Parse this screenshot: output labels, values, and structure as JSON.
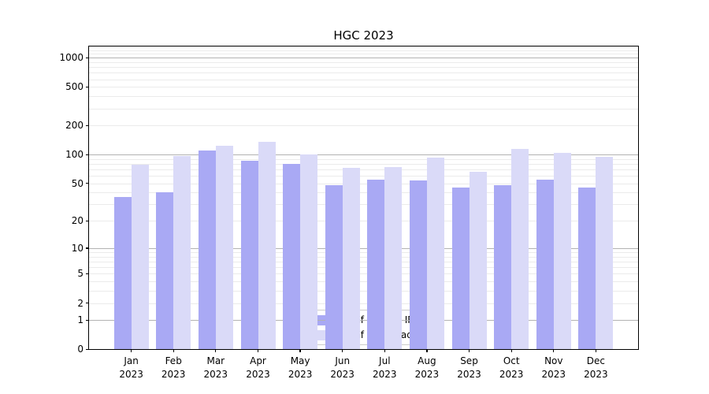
{
  "title": "HGC 2023",
  "chart_data": {
    "type": "bar",
    "title": "HGC 2023",
    "x_axis": {
      "categories": [
        "Jan",
        "Feb",
        "Mar",
        "Apr",
        "May",
        "Jun",
        "Jul",
        "Aug",
        "Sep",
        "Oct",
        "Nov",
        "Dec"
      ],
      "year_line": "2023"
    },
    "y_axis": {
      "scale": "log10(value+1)",
      "tick_labels": [
        1000,
        500,
        200,
        100,
        50,
        20,
        10,
        5,
        2,
        1,
        0
      ],
      "major_gridlines": [
        1,
        10,
        100,
        1000
      ],
      "ylim": [
        0,
        1300
      ],
      "grid": true
    },
    "series": [
      {
        "name": "Nb of distinct IPs",
        "color": "#a9a9f4",
        "values": [
          36,
          40,
          110,
          87,
          80,
          48,
          55,
          54,
          45,
          48,
          55,
          45
        ]
      },
      {
        "name": "Nb of downloads",
        "color": "#dadaf8",
        "values": [
          78,
          97,
          124,
          135,
          101,
          73,
          74,
          93,
          66,
          115,
          105,
          95
        ]
      }
    ],
    "legend": {
      "position": "lower center",
      "entries": [
        "Nb of distinct IPs",
        "Nb of downloads"
      ]
    }
  }
}
